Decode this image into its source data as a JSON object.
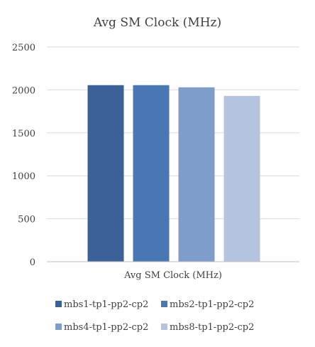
{
  "chart_data": {
    "type": "bar",
    "title": "Avg SM Clock (MHz)",
    "categories": [
      "Avg SM Clock (MHz)"
    ],
    "xlabel": "",
    "ylabel": "",
    "ylim": [
      0,
      2500
    ],
    "yticks": [
      0,
      500,
      1000,
      1500,
      2000,
      2500
    ],
    "grid": true,
    "legend_position": "bottom",
    "series": [
      {
        "name": "mbs1-tp1-pp2-cp2",
        "values": [
          2055
        ],
        "color": "#3a6298"
      },
      {
        "name": "mbs2-tp1-pp2-cp2",
        "values": [
          2055
        ],
        "color": "#4977b4"
      },
      {
        "name": "mbs4-tp1-pp2-cp2",
        "values": [
          2030
        ],
        "color": "#7f9dca"
      },
      {
        "name": "mbs8-tp1-pp2-cp2",
        "values": [
          1930
        ],
        "color": "#b5c4de"
      }
    ]
  }
}
